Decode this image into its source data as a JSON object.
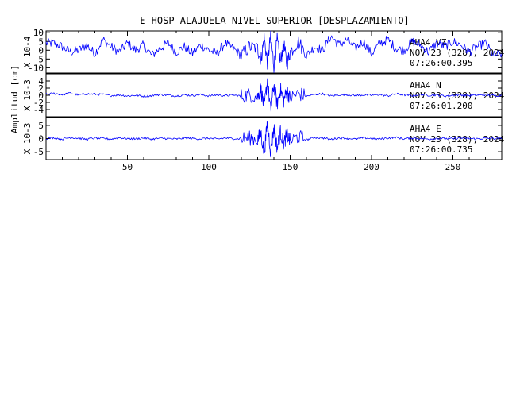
{
  "chart_data": {
    "type": "line",
    "title": "E HOSP ALAJUELA NIVEL SUPERIOR [DESPLAZAMIENTO]",
    "ylabel": "Amplitud [cm]",
    "xlim": [
      0,
      280
    ],
    "x_ticks": [
      "50",
      "100",
      "150",
      "200",
      "250"
    ],
    "grid": false,
    "trace_color": "#0000ff",
    "event_onset": 133,
    "panels": [
      {
        "name": "AHA4 VZ",
        "scale": "X 10-4",
        "ylim": [
          -13,
          11
        ],
        "y_ticks": [
          "10",
          "5",
          "0",
          "-5",
          "-10"
        ],
        "y_tick_values": [
          10,
          5,
          0,
          -5,
          -10
        ],
        "info": [
          "AHA4 VZ",
          "NOV 23 (328), 2024",
          "07:26:00.395"
        ],
        "series": {
          "x": [
            0,
            5,
            10,
            15,
            20,
            25,
            30,
            35,
            40,
            45,
            50,
            55,
            60,
            65,
            70,
            75,
            80,
            85,
            90,
            95,
            100,
            105,
            110,
            115,
            120,
            125,
            130,
            132,
            134,
            136,
            138,
            140,
            142,
            144,
            146,
            148,
            150,
            155,
            160,
            165,
            170,
            175,
            180,
            185,
            190,
            195,
            200,
            205,
            210,
            215,
            220,
            225,
            230,
            235,
            240,
            245,
            250,
            255,
            260,
            265,
            270,
            275,
            280
          ],
          "y": [
            4,
            4,
            2,
            -1,
            0,
            3,
            -2,
            6,
            2,
            -1,
            4,
            0,
            3,
            -3,
            1,
            4,
            -1,
            2,
            -2,
            3,
            0,
            -2,
            4,
            1,
            -3,
            2,
            1,
            -6,
            7,
            -7,
            8,
            -9,
            6,
            -7,
            4,
            -8,
            -1,
            5,
            -3,
            2,
            0,
            8,
            3,
            6,
            1,
            5,
            -2,
            4,
            6,
            1,
            0,
            5,
            3,
            -1,
            4,
            2,
            5,
            3,
            -1,
            2,
            4,
            -3,
            -2
          ]
        }
      },
      {
        "name": "AHA4 N",
        "scale": "X 10-3",
        "ylim": [
          -6,
          6
        ],
        "y_ticks": [
          "4",
          "2",
          "0",
          "-2",
          "-4"
        ],
        "y_tick_values": [
          4,
          2,
          0,
          -2,
          -4
        ],
        "info": [
          "AHA4 N",
          "NOV 23 (328), 2024",
          "07:26:01.200"
        ],
        "series": {
          "x": [
            0,
            5,
            10,
            15,
            20,
            25,
            30,
            35,
            40,
            45,
            50,
            55,
            60,
            65,
            70,
            75,
            80,
            85,
            90,
            95,
            100,
            105,
            110,
            115,
            120,
            125,
            130,
            132,
            134,
            136,
            138,
            140,
            142,
            144,
            146,
            148,
            150,
            155,
            160,
            165,
            170,
            175,
            180,
            185,
            190,
            195,
            200,
            205,
            210,
            215,
            220,
            225,
            230,
            235,
            240,
            245,
            250,
            255,
            260,
            265,
            270,
            275,
            280
          ],
          "y": [
            0.3,
            0.5,
            0.2,
            0.6,
            0.1,
            0.4,
            0.3,
            0.2,
            -0.1,
            0.1,
            -0.2,
            0.0,
            -0.3,
            -0.1,
            0.2,
            0.0,
            -0.2,
            0.1,
            -0.1,
            0.2,
            -0.2,
            0.1,
            -0.1,
            0.0,
            -0.2,
            0.1,
            -0.5,
            1.8,
            -3.5,
            4.2,
            -4.5,
            3.0,
            -2.5,
            1.8,
            -1.5,
            1.2,
            -0.8,
            0.5,
            -0.3,
            0.2,
            0.4,
            -0.2,
            0.1,
            0.2,
            -0.1,
            0.1,
            0.0,
            0.2,
            -0.2,
            0.4,
            0.1,
            -0.1,
            0.2,
            0.0,
            0.1,
            -0.2,
            0.0,
            0.1,
            -0.1,
            0.0,
            0.1,
            -0.1,
            0.0
          ]
        }
      },
      {
        "name": "AHA4 E",
        "scale": "X 10-3",
        "ylim": [
          -8,
          8
        ],
        "y_ticks": [
          "5",
          "0",
          "-5"
        ],
        "y_tick_values": [
          5,
          0,
          -5
        ],
        "info": [
          "AHA4 E",
          "NOV 23 (328), 2024",
          "07:26:00.735"
        ],
        "series": {
          "x": [
            0,
            5,
            10,
            15,
            20,
            25,
            30,
            35,
            40,
            45,
            50,
            55,
            60,
            65,
            70,
            75,
            80,
            85,
            90,
            95,
            100,
            105,
            110,
            115,
            120,
            125,
            130,
            132,
            134,
            136,
            138,
            140,
            142,
            144,
            146,
            148,
            150,
            155,
            160,
            165,
            170,
            175,
            180,
            185,
            190,
            195,
            200,
            205,
            210,
            215,
            220,
            225,
            230,
            235,
            240,
            245,
            250,
            255,
            260,
            265,
            270,
            275,
            280
          ],
          "y": [
            0.0,
            0.3,
            -0.2,
            0.4,
            0.1,
            -0.3,
            0.2,
            0.0,
            -0.2,
            0.3,
            0.0,
            -0.1,
            0.2,
            -0.2,
            0.1,
            0.0,
            -0.2,
            0.2,
            0.0,
            -0.1,
            0.1,
            -0.2,
            0.2,
            0.0,
            -0.1,
            0.2,
            -0.4,
            2.0,
            -5.5,
            6.0,
            -5.0,
            4.0,
            -3.5,
            2.5,
            -2.0,
            1.5,
            -1.0,
            0.8,
            -0.5,
            0.4,
            0.2,
            -0.3,
            0.2,
            0.1,
            -0.2,
            0.3,
            0.0,
            -0.2,
            0.2,
            0.4,
            -0.1,
            0.2,
            0.0,
            -0.2,
            0.1,
            0.0,
            -0.1,
            0.2,
            0.0,
            -0.1,
            0.1,
            0.0,
            -0.1
          ]
        }
      }
    ]
  }
}
